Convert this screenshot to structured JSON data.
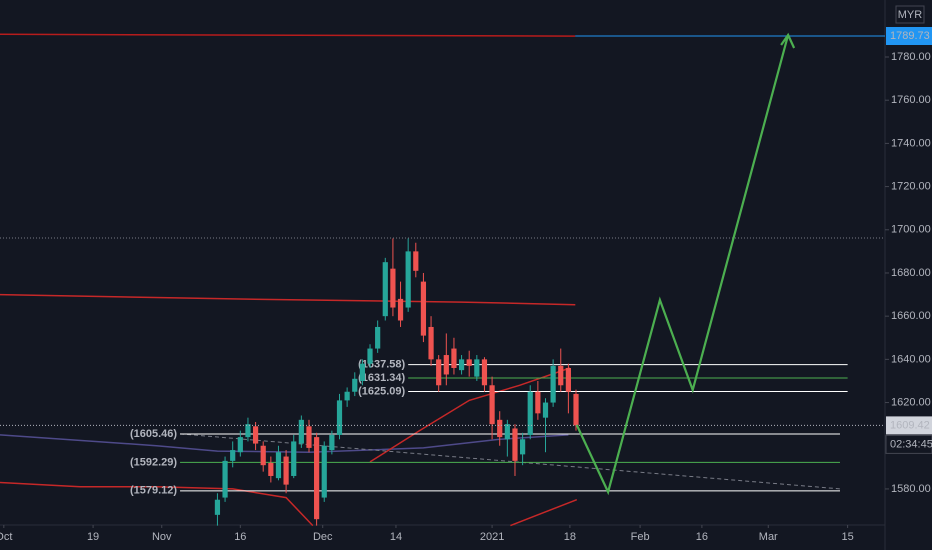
{
  "chart_data": {
    "type": "candlestick",
    "currency": "MYR",
    "xlim": [
      -0.5,
      115.5
    ],
    "ylim": [
      1563.3,
      1806.4
    ],
    "xticks": [
      {
        "value": 0,
        "label": "Oct"
      },
      {
        "value": 11.7,
        "label": "19"
      },
      {
        "value": 20.7,
        "label": "Nov"
      },
      {
        "value": 31,
        "label": "16"
      },
      {
        "value": 41.8,
        "label": "Dec"
      },
      {
        "value": 51.4,
        "label": "14"
      },
      {
        "value": 64,
        "label": "2021"
      },
      {
        "value": 74.2,
        "label": "18"
      },
      {
        "value": 83.4,
        "label": "Feb"
      },
      {
        "value": 91.5,
        "label": "16"
      },
      {
        "value": 100.2,
        "label": "Mar"
      },
      {
        "value": 110.6,
        "label": "15"
      }
    ],
    "yticks": [
      {
        "value": 1580,
        "label": "1580.00"
      },
      {
        "value": 1620,
        "label": "1620.00"
      },
      {
        "value": 1640,
        "label": "1640.00"
      },
      {
        "value": 1660,
        "label": "1660.00"
      },
      {
        "value": 1680,
        "label": "1680.00"
      },
      {
        "value": 1700,
        "label": "1700.00"
      },
      {
        "value": 1720,
        "label": "1720.00"
      },
      {
        "value": 1740,
        "label": "1740.00"
      },
      {
        "value": 1760,
        "label": "1760.00"
      },
      {
        "value": 1780,
        "label": "1780.00"
      }
    ],
    "up_color": "#26a69a",
    "down_color": "#ef5350",
    "x": [
      28,
      29,
      30,
      31,
      32,
      33,
      34,
      35,
      36,
      37,
      38,
      39,
      40,
      41,
      42,
      43,
      44,
      45,
      46,
      47,
      48,
      49,
      50,
      51,
      52,
      53,
      54,
      55,
      56,
      57,
      58,
      59,
      60,
      61,
      62,
      63,
      64,
      65,
      66,
      67,
      68,
      69,
      70,
      71,
      72,
      73,
      74,
      75
    ],
    "open": [
      1568,
      1576,
      1593,
      1597,
      1604,
      1609,
      1600,
      1592,
      1585,
      1595,
      1586,
      1601,
      1609,
      1604,
      1576,
      1598,
      1605,
      1621,
      1625,
      1630,
      1638,
      1645,
      1660,
      1682,
      1668,
      1664,
      1690,
      1676,
      1655,
      1640,
      1642,
      1645,
      1635,
      1640,
      1632,
      1640,
      1628,
      1612,
      1603,
      1608,
      1596,
      1605,
      1625,
      1613,
      1620,
      1637,
      1636,
      1624
    ],
    "high": [
      1578,
      1595,
      1602,
      1607,
      1613,
      1611,
      1602,
      1595,
      1600,
      1598,
      1605,
      1614,
      1612,
      1606,
      1602,
      1607,
      1624,
      1627,
      1634,
      1640,
      1647,
      1658,
      1687,
      1696,
      1676,
      1696,
      1694,
      1680,
      1660,
      1642,
      1652,
      1650,
      1642,
      1644,
      1642,
      1641,
      1632,
      1616,
      1612,
      1610,
      1606,
      1628,
      1630,
      1622,
      1640,
      1645,
      1638,
      1626
    ],
    "low": [
      1563,
      1574,
      1590,
      1595,
      1602,
      1598,
      1588,
      1583,
      1584,
      1578,
      1585,
      1599,
      1597,
      1563,
      1574,
      1596,
      1603,
      1618,
      1623,
      1628,
      1636,
      1643,
      1658,
      1660,
      1655,
      1662,
      1678,
      1648,
      1637,
      1625,
      1628,
      1633,
      1633,
      1632,
      1630,
      1625,
      1603,
      1600,
      1595,
      1586,
      1591,
      1603,
      1612,
      1597,
      1618,
      1625,
      1615,
      1607
    ],
    "close": [
      1575,
      1593,
      1598,
      1604,
      1610,
      1601,
      1591,
      1586,
      1597,
      1582,
      1602,
      1612,
      1599,
      1566,
      1600,
      1605,
      1621,
      1625,
      1631,
      1638,
      1645,
      1655,
      1685,
      1664,
      1658,
      1690,
      1681,
      1651,
      1640,
      1628,
      1633,
      1636,
      1640,
      1637,
      1640,
      1628,
      1610,
      1604,
      1610,
      1593,
      1603,
      1625,
      1615,
      1620,
      1637,
      1628,
      1625,
      1609.42
    ],
    "averages": [
      {
        "color": "#b71c1c",
        "x": [
          -0.5,
          74.9
        ],
        "values": [
          1790.5,
          1789.7
        ]
      },
      {
        "color": "#c62828",
        "x": [
          -0.5,
          30,
          60,
          74.9
        ],
        "values": [
          1670,
          1668,
          1666.5,
          1665.3
        ]
      },
      {
        "color": "#4e4a8a",
        "x": [
          -0.5,
          20,
          28,
          40,
          55,
          65,
          74
        ],
        "values": [
          1605,
          1600,
          1597.5,
          1597,
          1599,
          1603,
          1605
        ]
      },
      {
        "color": "#c62828",
        "x": [
          -0.5,
          10,
          20,
          30,
          37,
          40.5
        ],
        "values": [
          1583,
          1581,
          1581,
          1580,
          1576,
          1563
        ]
      },
      {
        "color": "#c62828",
        "x": [
          48,
          54.5,
          61,
          67.6,
          74.2
        ],
        "values": [
          1592.5,
          1607,
          1621,
          1628,
          1636
        ]
      },
      {
        "color": "#c62828",
        "x": [
          66.4,
          70,
          75.1
        ],
        "values": [
          1563,
          1568,
          1575
        ]
      }
    ],
    "levels": [
      {
        "value": 1637.58,
        "label": "(1637.58)",
        "color": "#ffffff",
        "x": [
          53,
          110.6
        ]
      },
      {
        "value": 1631.34,
        "label": "(1631.34)",
        "color": "#4caf50",
        "x": [
          53,
          110.6
        ]
      },
      {
        "value": 1625.09,
        "label": "(1625.09)",
        "color": "#ffffff",
        "x": [
          53,
          110.6
        ]
      },
      {
        "value": 1605.46,
        "label": "(1605.46)",
        "color": "#ffffff",
        "x": [
          23.1,
          109.6
        ]
      },
      {
        "value": 1592.29,
        "label": "(1592.29)",
        "color": "#4caf50",
        "x": [
          23.1,
          109.6
        ]
      },
      {
        "value": 1579.12,
        "label": "(1579.12)",
        "color": "#ffffff",
        "x": [
          23.1,
          109.6
        ]
      }
    ],
    "trend_line": {
      "x": [
        23.1,
        109.6
      ],
      "values": [
        1605.5,
        1580
      ]
    },
    "projection": {
      "color": "#4caf50",
      "x": [
        75.1,
        79.2,
        86,
        90.3,
        102.8
      ],
      "values": [
        1609.6,
        1578.6,
        1667.5,
        1625.8,
        1790.2
      ]
    },
    "high_line": 1696.2,
    "target": {
      "value": 1789.73,
      "x": [
        74.9,
        115.5
      ],
      "color": "#2196f3"
    },
    "last_price": {
      "value": 1609.42,
      "countdown": "02:34:45"
    }
  }
}
